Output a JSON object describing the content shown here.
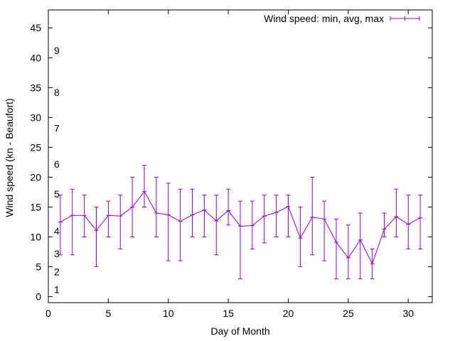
{
  "chart_data": {
    "type": "line",
    "title": "",
    "xlabel": "Day of Month",
    "ylabel": "Wind speed (kn - Beaufort)",
    "xlim": [
      0,
      32
    ],
    "ylim": [
      -1,
      48
    ],
    "xticks": [
      "0",
      "5",
      "10",
      "15",
      "20",
      "25",
      "30"
    ],
    "yticks": [
      "0",
      "5",
      "10",
      "15",
      "20",
      "25",
      "30",
      "35",
      "40",
      "45"
    ],
    "grid": false,
    "legend_position": "top-right",
    "color": "#9400D3",
    "series": [
      {
        "name": "Wind speed: min, avg, max",
        "x": [
          1,
          2,
          3,
          4,
          5,
          6,
          7,
          8,
          9,
          10,
          11,
          12,
          13,
          14,
          15,
          16,
          17,
          18,
          19,
          20,
          21,
          22,
          23,
          24,
          25,
          26,
          27,
          28,
          29,
          30,
          31
        ],
        "avg": [
          12.5,
          13.6,
          13.6,
          11.1,
          13.6,
          13.5,
          15,
          17.6,
          14,
          13.7,
          12.6,
          13.7,
          14.5,
          12.7,
          14.4,
          11.8,
          11.9,
          13.5,
          14.1,
          15.1,
          9.8,
          13.3,
          13,
          9.1,
          6.5,
          9.5,
          5.5,
          11.3,
          13.4,
          12.1,
          13.2
        ],
        "min": [
          7,
          7,
          10,
          5,
          10,
          8,
          10,
          15,
          10,
          6,
          6,
          10,
          10,
          7,
          12,
          3,
          8,
          9,
          10,
          10,
          5,
          7,
          6,
          3,
          3,
          3,
          3,
          10,
          10,
          8,
          8
        ],
        "max": [
          17,
          18,
          17,
          15,
          16,
          17,
          20,
          22,
          20,
          19,
          18,
          18,
          17,
          17,
          18,
          16,
          16,
          17,
          17,
          17,
          15,
          20,
          16,
          13,
          12,
          14,
          8,
          14,
          18,
          17,
          17
        ]
      }
    ],
    "annotations": [
      {
        "text": "1",
        "y": 1.2
      },
      {
        "text": "2",
        "y": 4.2
      },
      {
        "text": "3",
        "y": 7.2
      },
      {
        "text": "4",
        "y": 11
      },
      {
        "text": "5",
        "y": 17.2
      },
      {
        "text": "6",
        "y": 22.2
      },
      {
        "text": "7",
        "y": 28.2
      },
      {
        "text": "8",
        "y": 34.2
      },
      {
        "text": "9",
        "y": 41.2
      }
    ]
  }
}
